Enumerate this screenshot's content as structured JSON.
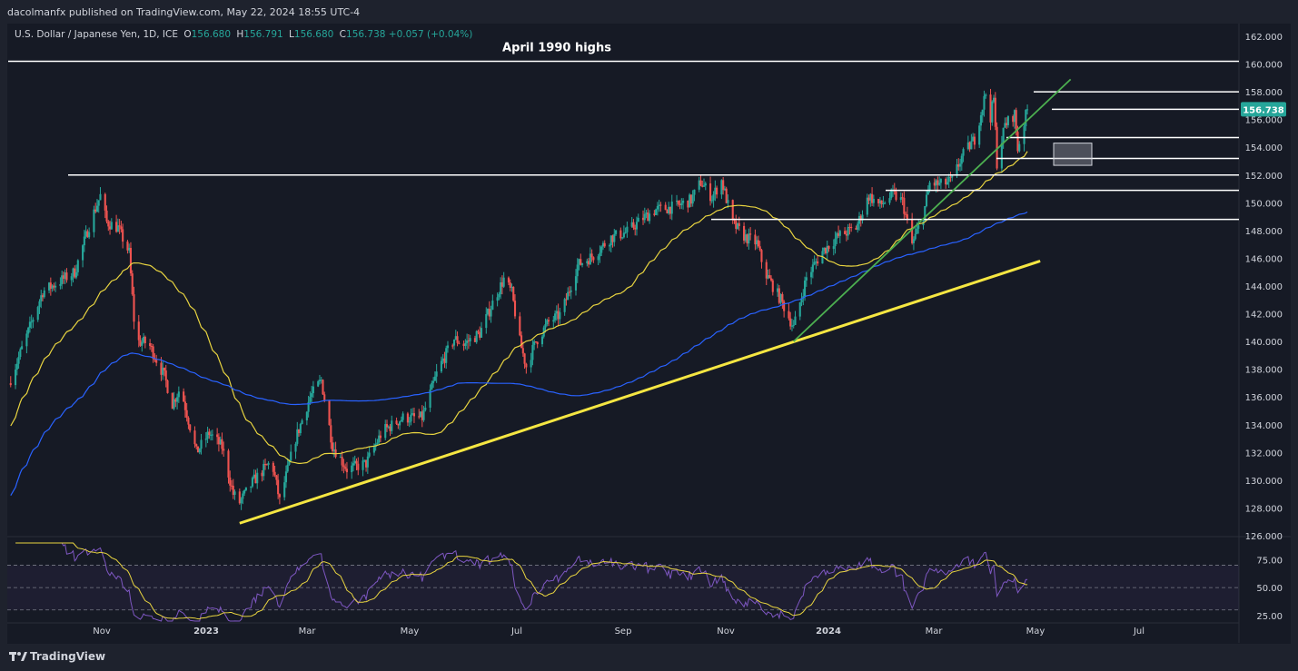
{
  "header": {
    "published_by": "dacolmanfx published on TradingView.com, May 22, 2024 18:55 UTC-4"
  },
  "legend": {
    "symbol": "U.S. Dollar / Japanese Yen, 1D, ICE",
    "open_label": "O",
    "open": "156.680",
    "high_label": "H",
    "high": "156.791",
    "low_label": "L",
    "low": "156.680",
    "close_label": "C",
    "close": "156.738",
    "change": "+0.057",
    "change_pct": "(+0.04%)"
  },
  "footer": {
    "logo_text": "TradingView"
  },
  "chart_data": {
    "type": "candlestick",
    "instrument": "USDJPY",
    "timeframe": "1D",
    "colors": {
      "background": "#161a25",
      "up": "#26a69a",
      "down": "#ef5350",
      "ma_fast": "#e8d440",
      "ma_slow": "#2962ff",
      "support_trendline": "#f5e642",
      "short_trendline": "#4caf50",
      "horizontal_levels": "#ffffff",
      "rsi_line": "#7e57c2",
      "rsi_signal": "#e8d440",
      "last_price_tag": "#26a69a"
    },
    "price_axis": {
      "ylim": [
        126,
        162
      ],
      "ticks": [
        "162.000",
        "160.000",
        "158.000",
        "156.000",
        "154.000",
        "152.000",
        "150.000",
        "148.000",
        "146.000",
        "144.000",
        "142.000",
        "140.000",
        "138.000",
        "136.000",
        "134.000",
        "132.000",
        "130.000",
        "128.000",
        "126.000"
      ]
    },
    "time_axis": {
      "labels": [
        {
          "text": "Nov",
          "bold": false
        },
        {
          "text": "2023",
          "bold": true
        },
        {
          "text": "Mar",
          "bold": false
        },
        {
          "text": "May",
          "bold": false
        },
        {
          "text": "Jul",
          "bold": false
        },
        {
          "text": "Sep",
          "bold": false
        },
        {
          "text": "Nov",
          "bold": false
        },
        {
          "text": "2024",
          "bold": true
        },
        {
          "text": "Mar",
          "bold": false
        },
        {
          "text": "May",
          "bold": false
        },
        {
          "text": "Jul",
          "bold": false
        }
      ]
    },
    "last_price": "156.738",
    "annotations": [
      {
        "text": "April 1990 highs",
        "price": 160.2
      }
    ],
    "horizontal_levels": [
      160.2,
      158.0,
      156.738,
      154.7,
      153.2,
      152.0,
      150.9,
      148.8
    ],
    "close_path": [
      [
        "2022-08-25",
        137.0
      ],
      [
        "2022-09-05",
        140.4
      ],
      [
        "2022-09-15",
        143.6
      ],
      [
        "2022-09-25",
        144.3
      ],
      [
        "2022-10-05",
        145.0
      ],
      [
        "2022-10-15",
        148.7
      ],
      [
        "2022-10-21",
        150.5
      ],
      [
        "2022-10-25",
        148.6
      ],
      [
        "2022-11-01",
        148.2
      ],
      [
        "2022-11-08",
        146.4
      ],
      [
        "2022-11-12",
        140.0
      ],
      [
        "2022-11-20",
        139.9
      ],
      [
        "2022-11-30",
        137.5
      ],
      [
        "2022-12-05",
        135.5
      ],
      [
        "2022-12-10",
        136.7
      ],
      [
        "2022-12-20",
        132.0
      ],
      [
        "2022-12-28",
        133.4
      ],
      [
        "2023-01-05",
        132.4
      ],
      [
        "2023-01-12",
        129.0
      ],
      [
        "2023-01-16",
        128.4
      ],
      [
        "2023-01-25",
        130.0
      ],
      [
        "2023-02-05",
        131.4
      ],
      [
        "2023-02-10",
        128.5
      ],
      [
        "2023-02-20",
        133.0
      ],
      [
        "2023-03-01",
        136.0
      ],
      [
        "2023-03-08",
        137.2
      ],
      [
        "2023-03-15",
        132.5
      ],
      [
        "2023-03-24",
        130.8
      ],
      [
        "2023-04-05",
        131.2
      ],
      [
        "2023-04-15",
        133.5
      ],
      [
        "2023-04-28",
        134.5
      ],
      [
        "2023-05-10",
        134.5
      ],
      [
        "2023-05-20",
        138.0
      ],
      [
        "2023-05-30",
        140.2
      ],
      [
        "2023-06-05",
        139.8
      ],
      [
        "2023-06-15",
        140.6
      ],
      [
        "2023-06-25",
        143.3
      ],
      [
        "2023-06-30",
        144.5
      ],
      [
        "2023-07-05",
        143.5
      ],
      [
        "2023-07-10",
        140.0
      ],
      [
        "2023-07-14",
        138.2
      ],
      [
        "2023-07-20",
        140.0
      ],
      [
        "2023-07-28",
        141.4
      ],
      [
        "2023-08-05",
        142.0
      ],
      [
        "2023-08-15",
        145.5
      ],
      [
        "2023-08-25",
        146.2
      ],
      [
        "2023-09-05",
        147.5
      ],
      [
        "2023-09-15",
        147.9
      ],
      [
        "2023-09-25",
        148.9
      ],
      [
        "2023-10-03",
        149.5
      ],
      [
        "2023-10-15",
        149.7
      ],
      [
        "2023-10-25",
        150.2
      ],
      [
        "2023-10-31",
        151.5
      ],
      [
        "2023-11-07",
        150.4
      ],
      [
        "2023-11-13",
        151.6
      ],
      [
        "2023-11-20",
        148.5
      ],
      [
        "2023-11-28",
        147.5
      ],
      [
        "2023-12-05",
        147.1
      ],
      [
        "2023-12-10",
        145.0
      ],
      [
        "2023-12-20",
        143.0
      ],
      [
        "2023-12-28",
        141.0
      ],
      [
        "2024-01-05",
        144.6
      ],
      [
        "2024-01-15",
        146.5
      ],
      [
        "2024-01-25",
        147.6
      ],
      [
        "2024-02-05",
        148.2
      ],
      [
        "2024-02-13",
        150.5
      ],
      [
        "2024-02-20",
        149.8
      ],
      [
        "2024-02-28",
        150.6
      ],
      [
        "2024-03-05",
        150.1
      ],
      [
        "2024-03-11",
        147.0
      ],
      [
        "2024-03-18",
        149.1
      ],
      [
        "2024-03-22",
        151.4
      ],
      [
        "2024-03-29",
        151.3
      ],
      [
        "2024-04-05",
        151.6
      ],
      [
        "2024-04-11",
        153.3
      ],
      [
        "2024-04-19",
        154.6
      ],
      [
        "2024-04-26",
        157.9
      ],
      [
        "2024-04-29",
        156.2
      ],
      [
        "2024-05-01",
        157.5
      ],
      [
        "2024-05-03",
        152.9
      ],
      [
        "2024-05-08",
        155.6
      ],
      [
        "2024-05-14",
        156.4
      ],
      [
        "2024-05-16",
        153.9
      ],
      [
        "2024-05-22",
        156.738
      ]
    ],
    "rsi": {
      "ylim": [
        20,
        90
      ],
      "ticks": [
        "75.00",
        "50.00",
        "25.00"
      ],
      "band": [
        30,
        70
      ]
    }
  }
}
